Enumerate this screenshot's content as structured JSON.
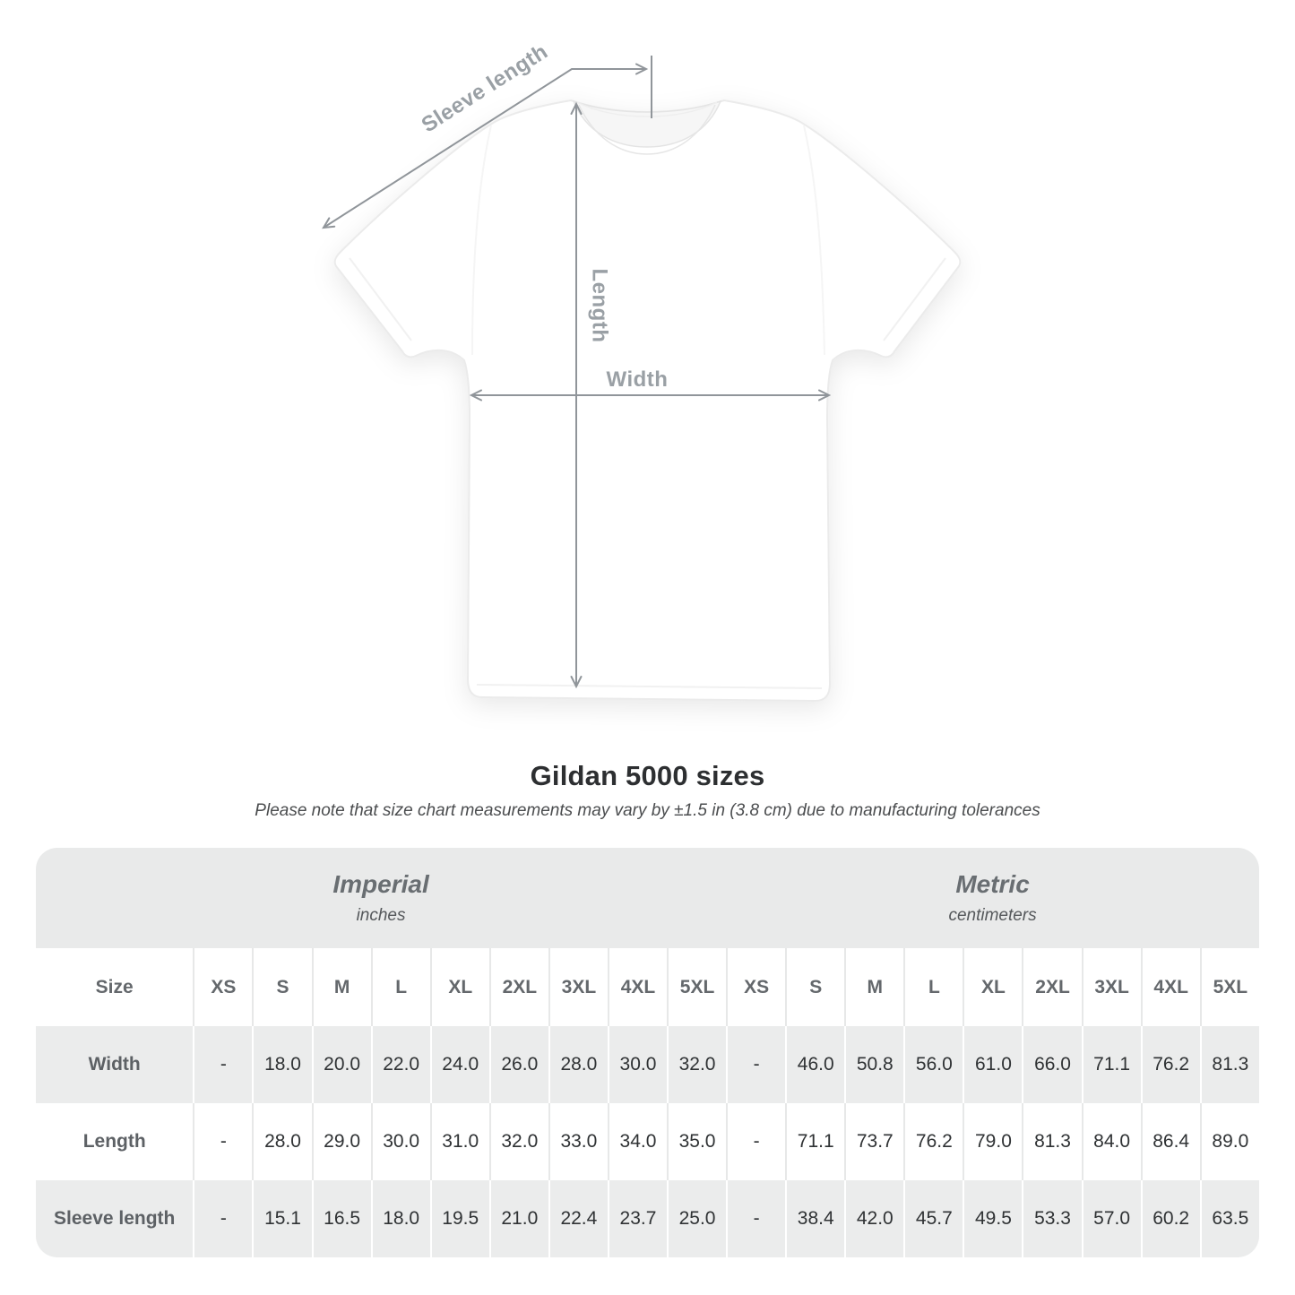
{
  "diagram": {
    "sleeve_length_label": "Sleeve length",
    "length_label": "Length",
    "width_label": "Width"
  },
  "title": "Gildan 5000 sizes",
  "subtitle": "Please note that size chart measurements may vary by ±1.5 in (3.8 cm) due to manufacturing tolerances",
  "table": {
    "size_header": "Size",
    "groups": [
      {
        "label": "Imperial",
        "unit": "inches"
      },
      {
        "label": "Metric",
        "unit": "centimeters"
      }
    ],
    "sizes": [
      "XS",
      "S",
      "M",
      "L",
      "XL",
      "2XL",
      "3XL",
      "4XL",
      "5XL"
    ],
    "rows": [
      {
        "label": "Width",
        "imperial": [
          "-",
          "18.0",
          "20.0",
          "22.0",
          "24.0",
          "26.0",
          "28.0",
          "30.0",
          "32.0"
        ],
        "metric": [
          "-",
          "46.0",
          "50.8",
          "56.0",
          "61.0",
          "66.0",
          "71.1",
          "76.2",
          "81.3"
        ]
      },
      {
        "label": "Length",
        "imperial": [
          "-",
          "28.0",
          "29.0",
          "30.0",
          "31.0",
          "32.0",
          "33.0",
          "34.0",
          "35.0"
        ],
        "metric": [
          "-",
          "71.1",
          "73.7",
          "76.2",
          "79.0",
          "81.3",
          "84.0",
          "86.4",
          "89.0"
        ]
      },
      {
        "label": "Sleeve length",
        "imperial": [
          "-",
          "15.1",
          "16.5",
          "18.0",
          "19.5",
          "21.0",
          "22.4",
          "23.7",
          "25.0"
        ],
        "metric": [
          "-",
          "38.4",
          "42.0",
          "45.7",
          "49.5",
          "53.3",
          "57.0",
          "60.2",
          "63.5"
        ]
      }
    ]
  },
  "colors": {
    "stripe_gray": "#ebecec",
    "group_band_gray": "#e9eaea",
    "measure_line_gray": "#90959a",
    "measure_label_gray": "#9aa0a5"
  }
}
